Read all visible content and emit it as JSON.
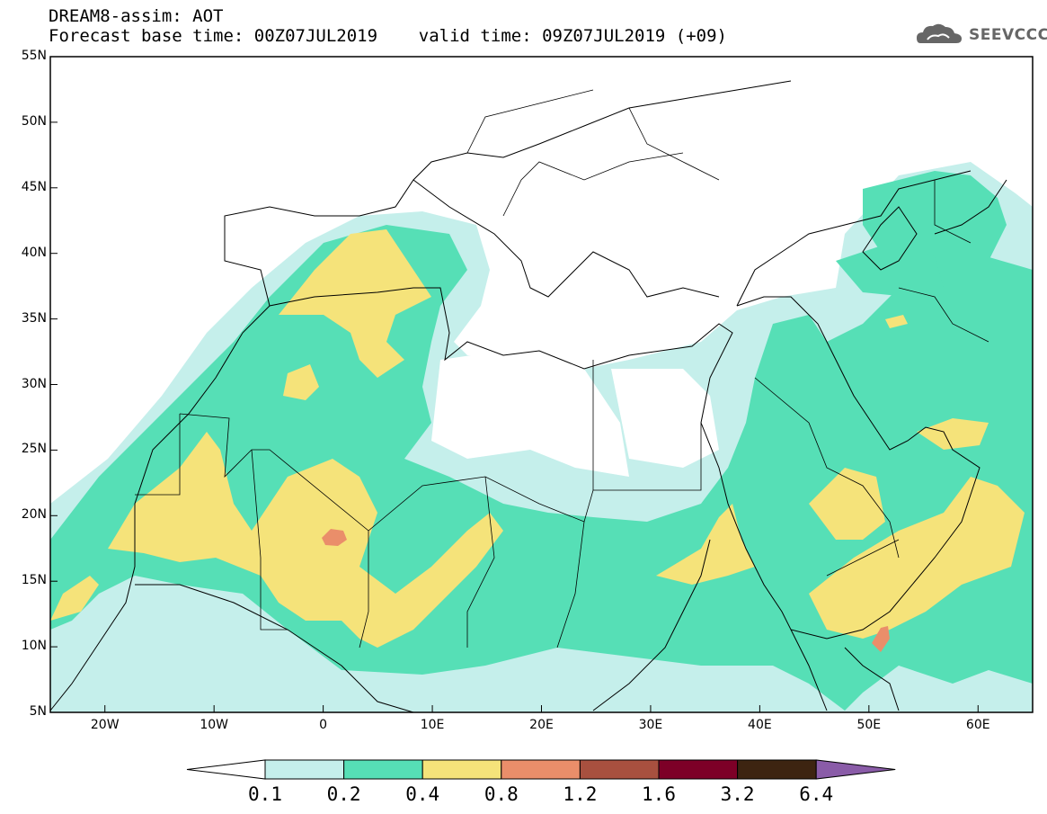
{
  "title_line1": "DREAM8-assim: AOT",
  "title_line2": "Forecast base time: 00Z07JUL2019    valid time: 09Z07JUL2019 (+09)",
  "logo_text": "SEEVCCC",
  "map": {
    "lon_range": [
      -25,
      65
    ],
    "lat_range": [
      5,
      55
    ],
    "lat_labels": [
      "55N",
      "50N",
      "45N",
      "40N",
      "35N",
      "30N",
      "25N",
      "20N",
      "15N",
      "10N",
      "5N"
    ],
    "lon_labels": [
      "20W",
      "10W",
      "0",
      "10E",
      "20E",
      "30E",
      "40E",
      "50E",
      "60E"
    ]
  },
  "colorbar": {
    "labels": [
      "0.1",
      "0.2",
      "0.4",
      "0.8",
      "1.2",
      "1.6",
      "3.2",
      "6.4"
    ],
    "colors": [
      "#ffffff",
      "#c5efeb",
      "#56dfb6",
      "#f5e37a",
      "#ea8e6a",
      "#a8503f",
      "#7d0027",
      "#3d2411",
      "#8a5ca8"
    ]
  }
}
